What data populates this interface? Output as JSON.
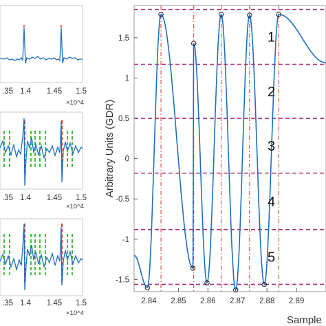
{
  "chart_data": [
    {
      "panel": "left-top",
      "type": "line",
      "x_ticks": [
        ".35",
        "1.4",
        "1.45",
        "1.5"
      ],
      "x_exponent": "×10^4",
      "colors": {
        "signal": "#1f6fbf",
        "peak": "#e03030"
      }
    },
    {
      "panel": "left-middle",
      "type": "line",
      "x_ticks": [
        ".35",
        "1.4",
        "1.45",
        "1.5"
      ],
      "x_exponent": "×10^4",
      "colors": {
        "signal": "#1f6fbf",
        "marker_red": "#e03030",
        "marker_green": "#3fbf3f"
      }
    },
    {
      "panel": "left-bottom",
      "type": "line",
      "x_ticks": [
        ".35",
        "1.4",
        "1.45",
        "1.5"
      ],
      "x_exponent": "×10^4",
      "colors": {
        "signal": "#1f6fbf",
        "marker_red": "#e03030",
        "marker_green": "#3fbf3f"
      }
    },
    {
      "panel": "main",
      "type": "line",
      "ylabel": "Arbitrary Units (GDR)",
      "xlabel": "Sample",
      "xlim": [
        2.835,
        2.9
      ],
      "ylim": [
        -1.65,
        1.9
      ],
      "x_ticks": [
        "2.84",
        "2.85",
        "2.86",
        "2.87",
        "2.88",
        "2.89"
      ],
      "y_ticks": [
        "1.5",
        "1",
        "0.5",
        "0",
        "-0.5",
        "-1",
        "-1.5"
      ],
      "series": [
        {
          "x": [
            2.8395,
            2.8441,
            2.8549,
            2.8552,
            2.8597,
            2.8645,
            2.8694,
            2.8741,
            2.8791,
            2.884
          ],
          "y": [
            -1.6,
            1.79,
            -1.36,
            1.43,
            -1.54,
            1.79,
            -1.63,
            1.78,
            -1.56,
            1.79
          ]
        }
      ],
      "band_levels": [
        1.85,
        1.17,
        0.5,
        -0.18,
        -0.88,
        -1.56
      ],
      "band_labels": [
        "1",
        "2",
        "3",
        "4",
        "5"
      ],
      "vertical_markers": [
        2.8441,
        2.8552,
        2.8645,
        2.8741,
        2.884
      ],
      "colors": {
        "signal": "#1f6fbf",
        "bands": "#b0337a",
        "vlines": "#d03030",
        "markers": "#222222"
      }
    }
  ]
}
